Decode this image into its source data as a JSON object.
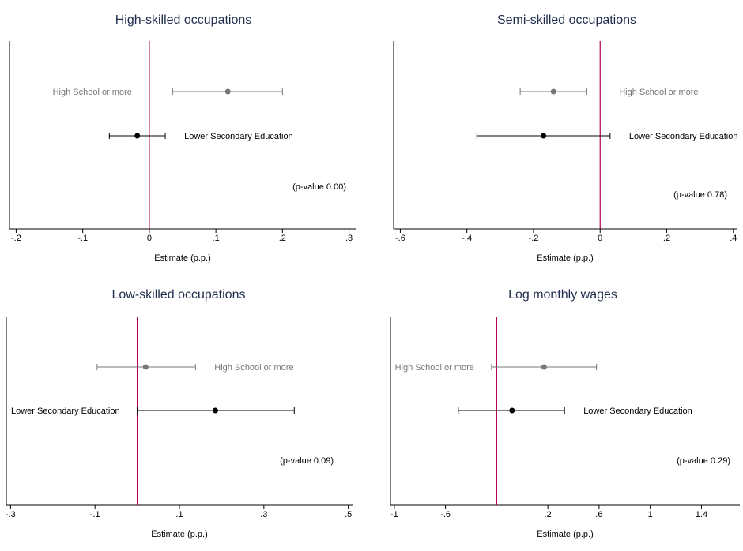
{
  "colors": {
    "zero_line": "#b0004f",
    "high_school": "#777777",
    "lower_secondary": "#000000",
    "title": "#1f2d4d"
  },
  "chart_data": [
    {
      "type": "scatter",
      "subtype": "coefficient-plot",
      "title": "High-skilled occupations",
      "xlabel": "Estimate (p.p.)",
      "xlim": [
        -0.21,
        0.31
      ],
      "xticks": [
        -0.2,
        -0.1,
        0,
        0.1,
        0.2,
        0.3
      ],
      "xtick_labels": [
        "-.2",
        "-.1",
        "0",
        ".1",
        ".2",
        ".3"
      ],
      "reference_line": 0,
      "series": [
        {
          "name": "High School or more",
          "estimate": 0.118,
          "ci_low": 0.035,
          "ci_high": 0.2,
          "label_side": "left",
          "color": "#777777"
        },
        {
          "name": "Lower Secondary Education",
          "estimate": -0.018,
          "ci_low": -0.06,
          "ci_high": 0.024,
          "label_side": "right",
          "color": "#000000"
        }
      ],
      "annotation": "(p-value 0.00)"
    },
    {
      "type": "scatter",
      "subtype": "coefficient-plot",
      "title": "Semi-skilled occupations",
      "xlabel": "Estimate (p.p.)",
      "xlim": [
        -0.62,
        0.41
      ],
      "xticks": [
        -0.6,
        -0.4,
        -0.2,
        0,
        0.2,
        0.4
      ],
      "xtick_labels": [
        "-.6",
        "-.4",
        "-.2",
        "0",
        ".2",
        ".4"
      ],
      "reference_line": 0,
      "series": [
        {
          "name": "High School or more",
          "estimate": -0.14,
          "ci_low": -0.24,
          "ci_high": -0.04,
          "label_side": "right",
          "color": "#777777"
        },
        {
          "name": "Lower Secondary Education",
          "estimate": -0.17,
          "ci_low": -0.37,
          "ci_high": 0.03,
          "label_side": "right",
          "color": "#000000"
        }
      ],
      "annotation": "(p-value 0.78)"
    },
    {
      "type": "scatter",
      "subtype": "coefficient-plot",
      "title": "Low-skilled occupations",
      "xlabel": "Estimate (p.p.)",
      "xlim": [
        -0.31,
        0.51
      ],
      "xticks": [
        -0.3,
        -0.1,
        0.1,
        0.3,
        0.5
      ],
      "xtick_labels": [
        "-.3",
        "-.1",
        ".1",
        ".3",
        ".5"
      ],
      "reference_line": 0,
      "series": [
        {
          "name": "High School or more",
          "estimate": 0.02,
          "ci_low": -0.095,
          "ci_high": 0.138,
          "label_side": "right",
          "color": "#777777"
        },
        {
          "name": "Lower Secondary Education",
          "estimate": 0.185,
          "ci_low": 0.0,
          "ci_high": 0.372,
          "label_side": "left",
          "color": "#000000"
        }
      ],
      "annotation": "(p-value 0.09)"
    },
    {
      "type": "scatter",
      "subtype": "coefficient-plot",
      "title": "Log monthly wages",
      "xlabel": "Estimate (p.p.)",
      "xlim": [
        -1.03,
        1.7
      ],
      "xticks": [
        -1,
        -0.6,
        0.2,
        0.6,
        1,
        1.4
      ],
      "xtick_labels": [
        "-1",
        "-.6",
        ".2",
        ".6",
        "1",
        "1.4"
      ],
      "reference_line": -0.2,
      "series": [
        {
          "name": "High School or more",
          "estimate": 0.17,
          "ci_low": -0.24,
          "ci_high": 0.58,
          "label_side": "left",
          "color": "#777777"
        },
        {
          "name": "Lower Secondary Education",
          "estimate": -0.08,
          "ci_low": -0.5,
          "ci_high": 0.33,
          "label_side": "right",
          "color": "#000000"
        }
      ],
      "annotation": "(p-value 0.29)"
    }
  ]
}
